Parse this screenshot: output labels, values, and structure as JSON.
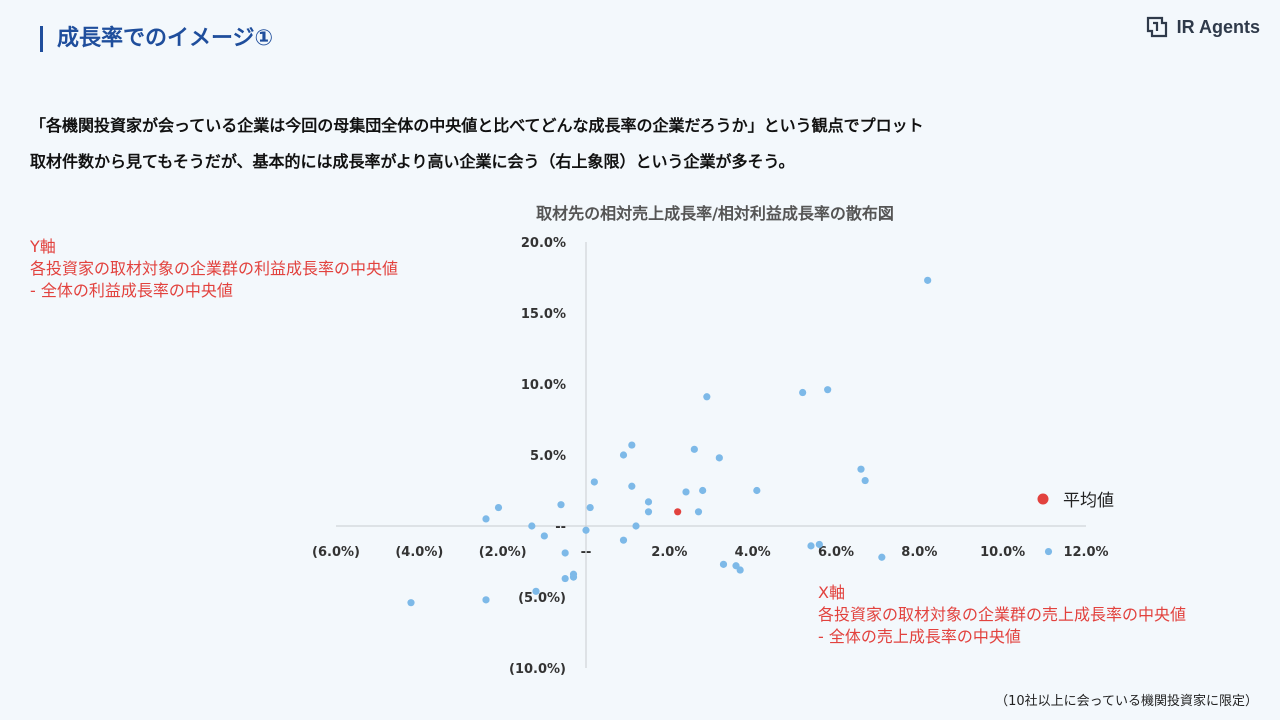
{
  "header": {
    "title": "成長率でのイメージ①",
    "logo_text": "IR Agents"
  },
  "description": {
    "line1": "「各機関投資家が会っている企業は今回の母集団全体の中央値と比べてどんな成長率の企業だろうか」という観点でプロット",
    "line2": "取材件数から見てもそうだが、基本的には成長率がより高い企業に会う（右上象限）という企業が多そう。"
  },
  "axis_notes": {
    "y": [
      "Y軸",
      "各投資家の取材対象の企業群の利益成長率の中央値",
      "- 全体の利益成長率の中央値"
    ],
    "x": [
      "X軸",
      "各投資家の取材対象の企業群の売上成長率の中央値",
      "- 全体の売上成長率の中央値"
    ]
  },
  "footnote": "（10社以上に会っている機関投資家に限定）",
  "colors": {
    "point": "#7db9e8",
    "average": "#e2423e",
    "title": "#1f4e9c",
    "note": "#e2423e"
  },
  "chart_data": {
    "type": "scatter",
    "title": "取材先の相対売上成長率/相対利益成長率の散布図",
    "xlim": [
      -6,
      12
    ],
    "ylim": [
      -10,
      20
    ],
    "x_ticks": [
      {
        "value": -6,
        "label": "(6.0%)"
      },
      {
        "value": -4,
        "label": "(4.0%)"
      },
      {
        "value": -2,
        "label": "(2.0%)"
      },
      {
        "value": 0,
        "label": "--"
      },
      {
        "value": 2,
        "label": "2.0%"
      },
      {
        "value": 4,
        "label": "4.0%"
      },
      {
        "value": 6,
        "label": "6.0%"
      },
      {
        "value": 8,
        "label": "8.0%"
      },
      {
        "value": 10,
        "label": "10.0%"
      },
      {
        "value": 12,
        "label": "12.0%"
      }
    ],
    "y_ticks": [
      {
        "value": 20,
        "label": "20.0%"
      },
      {
        "value": 15,
        "label": "15.0%"
      },
      {
        "value": 10,
        "label": "10.0%"
      },
      {
        "value": 5,
        "label": "5.0%"
      },
      {
        "value": 0,
        "label": "--"
      },
      {
        "value": -5,
        "label": "(5.0%)"
      },
      {
        "value": -10,
        "label": "(10.0%)"
      }
    ],
    "series": [
      {
        "points": [
          [
            8.2,
            17.3
          ],
          [
            5.8,
            9.6
          ],
          [
            5.2,
            9.4
          ],
          [
            2.9,
            9.1
          ],
          [
            1.1,
            5.7
          ],
          [
            2.6,
            5.4
          ],
          [
            0.9,
            5.0
          ],
          [
            3.2,
            4.8
          ],
          [
            6.6,
            4.0
          ],
          [
            6.7,
            3.2
          ],
          [
            0.2,
            3.1
          ],
          [
            1.1,
            2.8
          ],
          [
            2.8,
            2.5
          ],
          [
            2.4,
            2.4
          ],
          [
            4.1,
            2.5
          ],
          [
            1.5,
            1.7
          ],
          [
            -0.6,
            1.5
          ],
          [
            0.1,
            1.3
          ],
          [
            -2.1,
            1.3
          ],
          [
            1.5,
            1.0
          ],
          [
            2.7,
            1.0
          ],
          [
            -2.4,
            0.5
          ],
          [
            1.2,
            0.0
          ],
          [
            -1.3,
            0.0
          ],
          [
            0.0,
            -0.3
          ],
          [
            -1.0,
            -0.7
          ],
          [
            0.9,
            -1.0
          ],
          [
            5.4,
            -1.4
          ],
          [
            5.6,
            -1.3
          ],
          [
            -0.5,
            -1.9
          ],
          [
            7.1,
            -2.2
          ],
          [
            11.1,
            -1.8
          ],
          [
            3.3,
            -2.7
          ],
          [
            3.6,
            -2.8
          ],
          [
            3.7,
            -3.1
          ],
          [
            -0.3,
            -3.4
          ],
          [
            -0.3,
            -3.6
          ],
          [
            -0.5,
            -3.7
          ],
          [
            -1.2,
            -4.6
          ],
          [
            -2.4,
            -5.2
          ],
          [
            -4.2,
            -5.4
          ]
        ]
      }
    ],
    "average": {
      "label": "平均値",
      "point": [
        2.2,
        1.0
      ]
    }
  }
}
